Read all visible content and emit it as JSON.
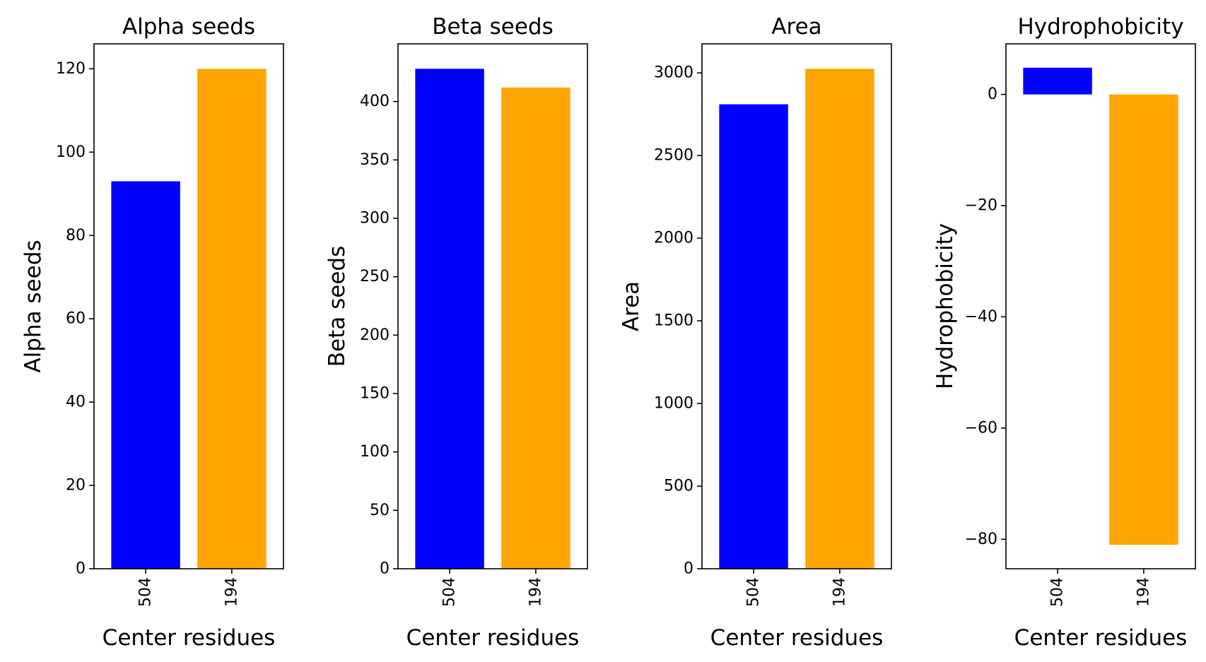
{
  "chart_data": [
    {
      "type": "bar",
      "title": "Alpha seeds",
      "xlabel": "Center residues",
      "ylabel": "Alpha seeds",
      "categories": [
        "504",
        "194"
      ],
      "values": [
        93,
        120
      ],
      "colors": [
        "#0000ff",
        "#ffa500"
      ],
      "ylim": [
        0,
        126
      ],
      "yticks": [
        0,
        20,
        40,
        60,
        80,
        100,
        120
      ],
      "ytick_labels": [
        "0",
        "20",
        "40",
        "60",
        "80",
        "100",
        "120"
      ],
      "grid": false,
      "xtick_rotation": "vertical"
    },
    {
      "type": "bar",
      "title": "Beta seeds",
      "xlabel": "Center residues",
      "ylabel": "Beta seeds",
      "categories": [
        "504",
        "194"
      ],
      "values": [
        428,
        412
      ],
      "colors": [
        "#0000ff",
        "#ffa500"
      ],
      "ylim": [
        0,
        449.4
      ],
      "yticks": [
        0,
        50,
        100,
        150,
        200,
        250,
        300,
        350,
        400
      ],
      "ytick_labels": [
        "0",
        "50",
        "100",
        "150",
        "200",
        "250",
        "300",
        "350",
        "400"
      ],
      "grid": false,
      "xtick_rotation": "vertical"
    },
    {
      "type": "bar",
      "title": "Area",
      "xlabel": "Center residues",
      "ylabel": "Area",
      "categories": [
        "504",
        "194"
      ],
      "values": [
        2810,
        3025
      ],
      "colors": [
        "#0000ff",
        "#ffa500"
      ],
      "ylim": [
        0,
        3176
      ],
      "yticks": [
        0,
        500,
        1000,
        1500,
        2000,
        2500,
        3000
      ],
      "ytick_labels": [
        "0",
        "500",
        "1000",
        "1500",
        "2000",
        "2500",
        "3000"
      ],
      "grid": false,
      "xtick_rotation": "vertical"
    },
    {
      "type": "bar",
      "title": "Hydrophobicity",
      "xlabel": "Center residues",
      "ylabel": "Hydrophobicity",
      "categories": [
        "504",
        "194"
      ],
      "values": [
        4.8,
        -81
      ],
      "colors": [
        "#0000ff",
        "#ffa500"
      ],
      "ylim": [
        -85.3,
        9.1
      ],
      "yticks": [
        -80,
        -60,
        -40,
        -20,
        0
      ],
      "ytick_labels": [
        "−80",
        "−60",
        "−40",
        "−20",
        "0"
      ],
      "grid": false,
      "xtick_rotation": "vertical"
    }
  ]
}
